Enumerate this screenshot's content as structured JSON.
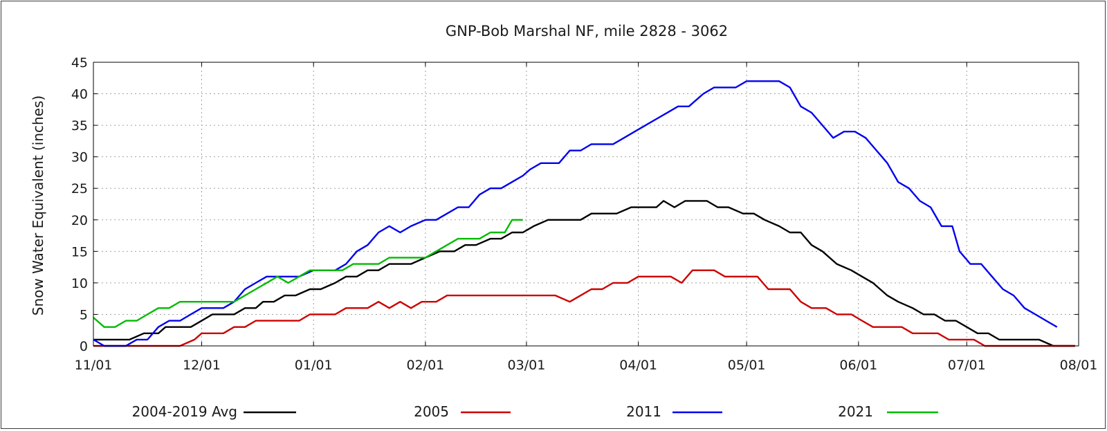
{
  "chart_data": {
    "type": "line",
    "title": "GNP-Bob Marshal NF, mile 2828 - 3062",
    "xlabel": "",
    "ylabel": "Snow Water Equivalent (inches)",
    "ylim": [
      0,
      45
    ],
    "yticks": [
      "0",
      "5",
      "10",
      "15",
      "20",
      "25",
      "30",
      "35",
      "40",
      "45"
    ],
    "xlim_days": [
      0,
      273
    ],
    "xticks": [
      {
        "label": "11/01",
        "day": 0
      },
      {
        "label": "12/01",
        "day": 30
      },
      {
        "label": "01/01",
        "day": 61
      },
      {
        "label": "02/01",
        "day": 92
      },
      {
        "label": "03/01",
        "day": 120
      },
      {
        "label": "04/01",
        "day": 151
      },
      {
        "label": "05/01",
        "day": 181
      },
      {
        "label": "06/01",
        "day": 212
      },
      {
        "label": "07/01",
        "day": 242
      },
      {
        "label": "08/01",
        "day": 273
      }
    ],
    "grid": true,
    "x_units": "days since 11/01",
    "series": [
      {
        "name": "2004-2019 Avg",
        "color": "#000000",
        "points": [
          [
            0,
            1
          ],
          [
            10,
            1
          ],
          [
            14,
            2
          ],
          [
            18,
            2
          ],
          [
            20,
            3
          ],
          [
            27,
            3
          ],
          [
            30,
            4
          ],
          [
            33,
            5
          ],
          [
            39,
            5
          ],
          [
            42,
            6
          ],
          [
            45,
            6
          ],
          [
            47,
            7
          ],
          [
            50,
            7
          ],
          [
            53,
            8
          ],
          [
            56,
            8
          ],
          [
            60,
            9
          ],
          [
            63,
            9
          ],
          [
            67,
            10
          ],
          [
            70,
            11
          ],
          [
            73,
            11
          ],
          [
            76,
            12
          ],
          [
            79,
            12
          ],
          [
            82,
            13
          ],
          [
            88,
            13
          ],
          [
            92,
            14
          ],
          [
            96,
            15
          ],
          [
            100,
            15
          ],
          [
            103,
            16
          ],
          [
            106,
            16
          ],
          [
            110,
            17
          ],
          [
            113,
            17
          ],
          [
            116,
            18
          ],
          [
            119,
            18
          ],
          [
            122,
            19
          ],
          [
            126,
            20
          ],
          [
            132,
            20
          ],
          [
            135,
            20
          ],
          [
            138,
            21
          ],
          [
            145,
            21
          ],
          [
            149,
            22
          ],
          [
            156,
            22
          ],
          [
            158,
            23
          ],
          [
            161,
            22
          ],
          [
            164,
            23
          ],
          [
            170,
            23
          ],
          [
            173,
            22
          ],
          [
            176,
            22
          ],
          [
            180,
            21
          ],
          [
            183,
            21
          ],
          [
            186,
            20
          ],
          [
            190,
            19
          ],
          [
            193,
            18
          ],
          [
            196,
            18
          ],
          [
            199,
            16
          ],
          [
            202,
            15
          ],
          [
            206,
            13
          ],
          [
            210,
            12
          ],
          [
            213,
            11
          ],
          [
            216,
            10
          ],
          [
            220,
            8
          ],
          [
            223,
            7
          ],
          [
            227,
            6
          ],
          [
            230,
            5
          ],
          [
            233,
            5
          ],
          [
            236,
            4
          ],
          [
            239,
            4
          ],
          [
            242,
            3
          ],
          [
            245,
            2
          ],
          [
            248,
            2
          ],
          [
            251,
            1
          ],
          [
            262,
            1
          ],
          [
            266,
            0
          ],
          [
            272,
            0
          ]
        ]
      },
      {
        "name": "2005",
        "color": "#cc0000",
        "points": [
          [
            0,
            0
          ],
          [
            24,
            0
          ],
          [
            28,
            1
          ],
          [
            30,
            2
          ],
          [
            36,
            2
          ],
          [
            39,
            3
          ],
          [
            42,
            3
          ],
          [
            45,
            4
          ],
          [
            57,
            4
          ],
          [
            60,
            5
          ],
          [
            67,
            5
          ],
          [
            70,
            6
          ],
          [
            76,
            6
          ],
          [
            79,
            7
          ],
          [
            82,
            6
          ],
          [
            85,
            7
          ],
          [
            88,
            6
          ],
          [
            91,
            7
          ],
          [
            95,
            7
          ],
          [
            98,
            8
          ],
          [
            128,
            8
          ],
          [
            132,
            7
          ],
          [
            135,
            8
          ],
          [
            138,
            9
          ],
          [
            141,
            9
          ],
          [
            144,
            10
          ],
          [
            148,
            10
          ],
          [
            151,
            11
          ],
          [
            160,
            11
          ],
          [
            163,
            10
          ],
          [
            166,
            12
          ],
          [
            172,
            12
          ],
          [
            175,
            11
          ],
          [
            184,
            11
          ],
          [
            187,
            9
          ],
          [
            193,
            9
          ],
          [
            196,
            7
          ],
          [
            199,
            6
          ],
          [
            203,
            6
          ],
          [
            206,
            5
          ],
          [
            210,
            5
          ],
          [
            213,
            4
          ],
          [
            216,
            3
          ],
          [
            224,
            3
          ],
          [
            227,
            2
          ],
          [
            234,
            2
          ],
          [
            237,
            1
          ],
          [
            244,
            1
          ],
          [
            247,
            0
          ],
          [
            272,
            0
          ]
        ]
      },
      {
        "name": "2011",
        "color": "#0000ee",
        "points": [
          [
            0,
            1
          ],
          [
            3,
            0
          ],
          [
            9,
            0
          ],
          [
            12,
            1
          ],
          [
            15,
            1
          ],
          [
            18,
            3
          ],
          [
            21,
            4
          ],
          [
            24,
            4
          ],
          [
            27,
            5
          ],
          [
            30,
            6
          ],
          [
            36,
            6
          ],
          [
            39,
            7
          ],
          [
            42,
            9
          ],
          [
            45,
            10
          ],
          [
            48,
            11
          ],
          [
            57,
            11
          ],
          [
            61,
            12
          ],
          [
            67,
            12
          ],
          [
            70,
            13
          ],
          [
            73,
            15
          ],
          [
            76,
            16
          ],
          [
            79,
            18
          ],
          [
            82,
            19
          ],
          [
            85,
            18
          ],
          [
            88,
            19
          ],
          [
            92,
            20
          ],
          [
            95,
            20
          ],
          [
            98,
            21
          ],
          [
            101,
            22
          ],
          [
            104,
            22
          ],
          [
            107,
            24
          ],
          [
            110,
            25
          ],
          [
            113,
            25
          ],
          [
            116,
            26
          ],
          [
            119,
            27
          ],
          [
            121,
            28
          ],
          [
            124,
            29
          ],
          [
            129,
            29
          ],
          [
            132,
            31
          ],
          [
            135,
            31
          ],
          [
            138,
            32
          ],
          [
            144,
            32
          ],
          [
            147,
            33
          ],
          [
            150,
            34
          ],
          [
            153,
            35
          ],
          [
            156,
            36
          ],
          [
            159,
            37
          ],
          [
            162,
            38
          ],
          [
            165,
            38
          ],
          [
            167,
            39
          ],
          [
            169,
            40
          ],
          [
            172,
            41
          ],
          [
            178,
            41
          ],
          [
            181,
            42
          ],
          [
            190,
            42
          ],
          [
            193,
            41
          ],
          [
            196,
            38
          ],
          [
            199,
            37
          ],
          [
            202,
            35
          ],
          [
            205,
            33
          ],
          [
            208,
            34
          ],
          [
            211,
            34
          ],
          [
            214,
            33
          ],
          [
            217,
            31
          ],
          [
            220,
            29
          ],
          [
            223,
            26
          ],
          [
            226,
            25
          ],
          [
            229,
            23
          ],
          [
            232,
            22
          ],
          [
            235,
            19
          ],
          [
            238,
            19
          ],
          [
            240,
            15
          ],
          [
            243,
            13
          ],
          [
            246,
            13
          ],
          [
            249,
            11
          ],
          [
            252,
            9
          ],
          [
            255,
            8
          ],
          [
            258,
            6
          ],
          [
            261,
            5
          ],
          [
            264,
            4
          ],
          [
            267,
            3
          ]
        ]
      },
      {
        "name": "2021",
        "color": "#00bb00",
        "points": [
          [
            0,
            4.5
          ],
          [
            3,
            3
          ],
          [
            6,
            3
          ],
          [
            9,
            4
          ],
          [
            12,
            4
          ],
          [
            15,
            5
          ],
          [
            18,
            6
          ],
          [
            21,
            6
          ],
          [
            24,
            7
          ],
          [
            39,
            7
          ],
          [
            42,
            8
          ],
          [
            45,
            9
          ],
          [
            48,
            10
          ],
          [
            51,
            11
          ],
          [
            54,
            10
          ],
          [
            57,
            11
          ],
          [
            60,
            12
          ],
          [
            66,
            12
          ],
          [
            69,
            12
          ],
          [
            72,
            13
          ],
          [
            79,
            13
          ],
          [
            82,
            14
          ],
          [
            92,
            14
          ],
          [
            95,
            15
          ],
          [
            98,
            16
          ],
          [
            101,
            17
          ],
          [
            107,
            17
          ],
          [
            110,
            18
          ],
          [
            114,
            18
          ],
          [
            116,
            20
          ],
          [
            119,
            20
          ]
        ]
      }
    ],
    "legend_position": "bottom"
  }
}
